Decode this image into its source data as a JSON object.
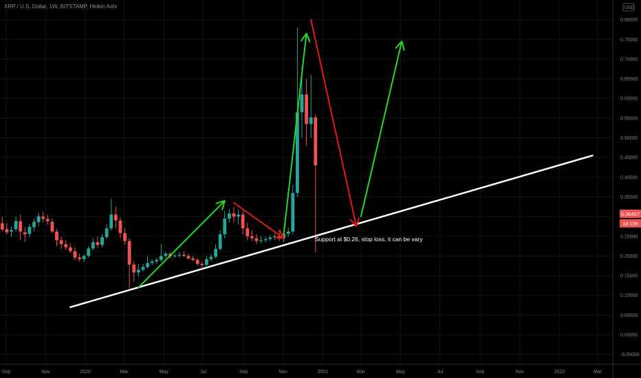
{
  "chart_data": {
    "type": "candlestick",
    "title": "XRP / U.S. Dollar, 1W, BITSTAMP, Heikin Ashi",
    "currency_label": "USD",
    "price_tag": "0.30457",
    "countdown_tag": "1d 15h",
    "annotation": "Support at $0.26, stop loss, it can be vary",
    "y_ticks": [
      "0.80000",
      "0.75000",
      "0.70000",
      "0.65000",
      "0.60000",
      "0.55000",
      "0.50000",
      "0.45000",
      "0.40000",
      "0.35000",
      "0.30000",
      "0.25000",
      "0.20000",
      "0.15000",
      "0.10000",
      "0.05000",
      "0.00000",
      "-0.05000"
    ],
    "x_ticks": [
      "Sep",
      "Nov",
      "2020",
      "Mar",
      "May",
      "Jul",
      "Sep",
      "Nov",
      "2021",
      "Mar",
      "May",
      "Jul",
      "Sep",
      "Nov",
      "2022",
      "Mar"
    ],
    "ylim": [
      -0.075,
      0.85
    ],
    "up_color": "#26a69a",
    "down_color": "#ef5350",
    "candles": [
      {
        "date": "2019-08-26",
        "o": 0.283,
        "h": 0.3,
        "l": 0.262,
        "c": 0.267
      },
      {
        "date": "2019-09-02",
        "o": 0.268,
        "h": 0.283,
        "l": 0.255,
        "c": 0.26
      },
      {
        "date": "2019-09-09",
        "o": 0.262,
        "h": 0.275,
        "l": 0.249,
        "c": 0.266
      },
      {
        "date": "2019-09-16",
        "o": 0.268,
        "h": 0.3,
        "l": 0.261,
        "c": 0.289
      },
      {
        "date": "2019-09-23",
        "o": 0.288,
        "h": 0.305,
        "l": 0.24,
        "c": 0.262
      },
      {
        "date": "2019-09-30",
        "o": 0.26,
        "h": 0.273,
        "l": 0.235,
        "c": 0.255
      },
      {
        "date": "2019-10-07",
        "o": 0.256,
        "h": 0.282,
        "l": 0.247,
        "c": 0.274
      },
      {
        "date": "2019-10-14",
        "o": 0.273,
        "h": 0.295,
        "l": 0.262,
        "c": 0.287
      },
      {
        "date": "2019-10-21",
        "o": 0.286,
        "h": 0.31,
        "l": 0.275,
        "c": 0.301
      },
      {
        "date": "2019-10-28",
        "o": 0.3,
        "h": 0.312,
        "l": 0.285,
        "c": 0.294
      },
      {
        "date": "2019-11-04",
        "o": 0.294,
        "h": 0.305,
        "l": 0.28,
        "c": 0.288
      },
      {
        "date": "2019-11-11",
        "o": 0.287,
        "h": 0.295,
        "l": 0.258,
        "c": 0.262
      },
      {
        "date": "2019-11-18",
        "o": 0.262,
        "h": 0.268,
        "l": 0.225,
        "c": 0.24
      },
      {
        "date": "2019-11-25",
        "o": 0.24,
        "h": 0.25,
        "l": 0.218,
        "c": 0.23
      },
      {
        "date": "2019-12-02",
        "o": 0.23,
        "h": 0.24,
        "l": 0.215,
        "c": 0.222
      },
      {
        "date": "2019-12-09",
        "o": 0.222,
        "h": 0.232,
        "l": 0.208,
        "c": 0.212
      },
      {
        "date": "2019-12-16",
        "o": 0.212,
        "h": 0.222,
        "l": 0.188,
        "c": 0.196
      },
      {
        "date": "2019-12-23",
        "o": 0.196,
        "h": 0.205,
        "l": 0.186,
        "c": 0.192
      },
      {
        "date": "2019-12-30",
        "o": 0.192,
        "h": 0.205,
        "l": 0.185,
        "c": 0.2
      },
      {
        "date": "2020-01-06",
        "o": 0.2,
        "h": 0.225,
        "l": 0.196,
        "c": 0.219
      },
      {
        "date": "2020-01-13",
        "o": 0.219,
        "h": 0.245,
        "l": 0.214,
        "c": 0.235
      },
      {
        "date": "2020-01-20",
        "o": 0.235,
        "h": 0.25,
        "l": 0.22,
        "c": 0.228
      },
      {
        "date": "2020-01-27",
        "o": 0.228,
        "h": 0.255,
        "l": 0.222,
        "c": 0.248
      },
      {
        "date": "2020-02-03",
        "o": 0.248,
        "h": 0.28,
        "l": 0.243,
        "c": 0.27
      },
      {
        "date": "2020-02-10",
        "o": 0.27,
        "h": 0.345,
        "l": 0.264,
        "c": 0.305
      },
      {
        "date": "2020-02-17",
        "o": 0.305,
        "h": 0.325,
        "l": 0.27,
        "c": 0.29
      },
      {
        "date": "2020-02-24",
        "o": 0.29,
        "h": 0.298,
        "l": 0.245,
        "c": 0.258
      },
      {
        "date": "2020-03-02",
        "o": 0.258,
        "h": 0.27,
        "l": 0.228,
        "c": 0.238
      },
      {
        "date": "2020-03-09",
        "o": 0.238,
        "h": 0.245,
        "l": 0.118,
        "c": 0.178
      },
      {
        "date": "2020-03-16",
        "o": 0.178,
        "h": 0.186,
        "l": 0.135,
        "c": 0.158
      },
      {
        "date": "2020-03-23",
        "o": 0.158,
        "h": 0.18,
        "l": 0.148,
        "c": 0.165
      },
      {
        "date": "2020-03-30",
        "o": 0.165,
        "h": 0.18,
        "l": 0.16,
        "c": 0.172
      },
      {
        "date": "2020-04-06",
        "o": 0.172,
        "h": 0.2,
        "l": 0.168,
        "c": 0.182
      },
      {
        "date": "2020-04-13",
        "o": 0.182,
        "h": 0.192,
        "l": 0.176,
        "c": 0.186
      },
      {
        "date": "2020-04-20",
        "o": 0.186,
        "h": 0.196,
        "l": 0.18,
        "c": 0.19
      },
      {
        "date": "2020-04-27",
        "o": 0.19,
        "h": 0.23,
        "l": 0.185,
        "c": 0.2
      },
      {
        "date": "2020-05-04",
        "o": 0.2,
        "h": 0.212,
        "l": 0.194,
        "c": 0.206
      },
      {
        "date": "2020-05-11",
        "o": 0.206,
        "h": 0.21,
        "l": 0.194,
        "c": 0.199
      },
      {
        "date": "2020-05-18",
        "o": 0.199,
        "h": 0.205,
        "l": 0.195,
        "c": 0.201
      },
      {
        "date": "2020-05-25",
        "o": 0.201,
        "h": 0.21,
        "l": 0.196,
        "c": 0.203
      },
      {
        "date": "2020-06-01",
        "o": 0.203,
        "h": 0.212,
        "l": 0.198,
        "c": 0.2
      },
      {
        "date": "2020-06-08",
        "o": 0.2,
        "h": 0.206,
        "l": 0.19,
        "c": 0.194
      },
      {
        "date": "2020-06-15",
        "o": 0.194,
        "h": 0.2,
        "l": 0.186,
        "c": 0.19
      },
      {
        "date": "2020-06-22",
        "o": 0.19,
        "h": 0.195,
        "l": 0.175,
        "c": 0.18
      },
      {
        "date": "2020-06-29",
        "o": 0.18,
        "h": 0.186,
        "l": 0.172,
        "c": 0.177
      },
      {
        "date": "2020-07-06",
        "o": 0.177,
        "h": 0.2,
        "l": 0.174,
        "c": 0.192
      },
      {
        "date": "2020-07-13",
        "o": 0.192,
        "h": 0.205,
        "l": 0.186,
        "c": 0.198
      },
      {
        "date": "2020-07-20",
        "o": 0.198,
        "h": 0.23,
        "l": 0.193,
        "c": 0.218
      },
      {
        "date": "2020-07-27",
        "o": 0.218,
        "h": 0.265,
        "l": 0.213,
        "c": 0.255
      },
      {
        "date": "2020-08-03",
        "o": 0.255,
        "h": 0.315,
        "l": 0.245,
        "c": 0.295
      },
      {
        "date": "2020-08-10",
        "o": 0.295,
        "h": 0.32,
        "l": 0.285,
        "c": 0.308
      },
      {
        "date": "2020-08-17",
        "o": 0.308,
        "h": 0.325,
        "l": 0.285,
        "c": 0.3
      },
      {
        "date": "2020-08-24",
        "o": 0.3,
        "h": 0.318,
        "l": 0.28,
        "c": 0.305
      },
      {
        "date": "2020-08-31",
        "o": 0.305,
        "h": 0.315,
        "l": 0.255,
        "c": 0.27
      },
      {
        "date": "2020-09-07",
        "o": 0.27,
        "h": 0.285,
        "l": 0.24,
        "c": 0.25
      },
      {
        "date": "2020-09-14",
        "o": 0.25,
        "h": 0.265,
        "l": 0.238,
        "c": 0.245
      },
      {
        "date": "2020-09-21",
        "o": 0.245,
        "h": 0.255,
        "l": 0.23,
        "c": 0.238
      },
      {
        "date": "2020-09-28",
        "o": 0.238,
        "h": 0.25,
        "l": 0.232,
        "c": 0.24
      },
      {
        "date": "2020-10-05",
        "o": 0.24,
        "h": 0.25,
        "l": 0.234,
        "c": 0.243
      },
      {
        "date": "2020-10-12",
        "o": 0.243,
        "h": 0.252,
        "l": 0.238,
        "c": 0.247
      },
      {
        "date": "2020-10-19",
        "o": 0.247,
        "h": 0.258,
        "l": 0.24,
        "c": 0.25
      },
      {
        "date": "2020-10-26",
        "o": 0.25,
        "h": 0.265,
        "l": 0.238,
        "c": 0.244
      },
      {
        "date": "2020-11-02",
        "o": 0.244,
        "h": 0.26,
        "l": 0.235,
        "c": 0.256
      },
      {
        "date": "2020-11-09",
        "o": 0.256,
        "h": 0.272,
        "l": 0.248,
        "c": 0.262
      },
      {
        "date": "2020-11-16",
        "o": 0.262,
        "h": 0.38,
        "l": 0.255,
        "c": 0.36
      },
      {
        "date": "2020-11-23",
        "o": 0.36,
        "h": 0.78,
        "l": 0.35,
        "c": 0.565
      },
      {
        "date": "2020-11-30",
        "o": 0.565,
        "h": 0.68,
        "l": 0.5,
        "c": 0.61
      },
      {
        "date": "2020-12-07",
        "o": 0.61,
        "h": 0.65,
        "l": 0.48,
        "c": 0.535
      },
      {
        "date": "2020-12-14",
        "o": 0.535,
        "h": 0.66,
        "l": 0.5,
        "c": 0.552
      },
      {
        "date": "2020-12-21",
        "o": 0.552,
        "h": 0.56,
        "l": 0.21,
        "c": 0.43
      }
    ]
  },
  "drawings": [
    {
      "name": "support-trendline",
      "color": "#ffffff",
      "from": [
        "2019-12-09",
        0.07
      ],
      "to": [
        "2022-02-21",
        0.455
      ],
      "arrow": false
    },
    {
      "name": "green-arrow-1",
      "color": "#22dd22",
      "from": [
        "2020-03-23",
        0.12
      ],
      "to": [
        "2020-08-03",
        0.34
      ],
      "arrow": true
    },
    {
      "name": "red-arrow-1",
      "color": "#e81818",
      "from": [
        "2020-08-17",
        0.335
      ],
      "to": [
        "2020-11-02",
        0.245
      ],
      "arrow": true
    },
    {
      "name": "green-arrow-2",
      "color": "#22dd22",
      "from": [
        "2020-11-02",
        0.255
      ],
      "to": [
        "2020-12-07",
        0.765
      ],
      "arrow": true
    },
    {
      "name": "red-arrow-2",
      "color": "#e81818",
      "from": [
        "2020-12-14",
        0.8
      ],
      "to": [
        "2021-02-22",
        0.275
      ],
      "arrow": true
    },
    {
      "name": "green-arrow-3",
      "color": "#22dd22",
      "from": [
        "2021-03-01",
        0.3
      ],
      "to": [
        "2021-05-03",
        0.745
      ],
      "arrow": true
    }
  ]
}
